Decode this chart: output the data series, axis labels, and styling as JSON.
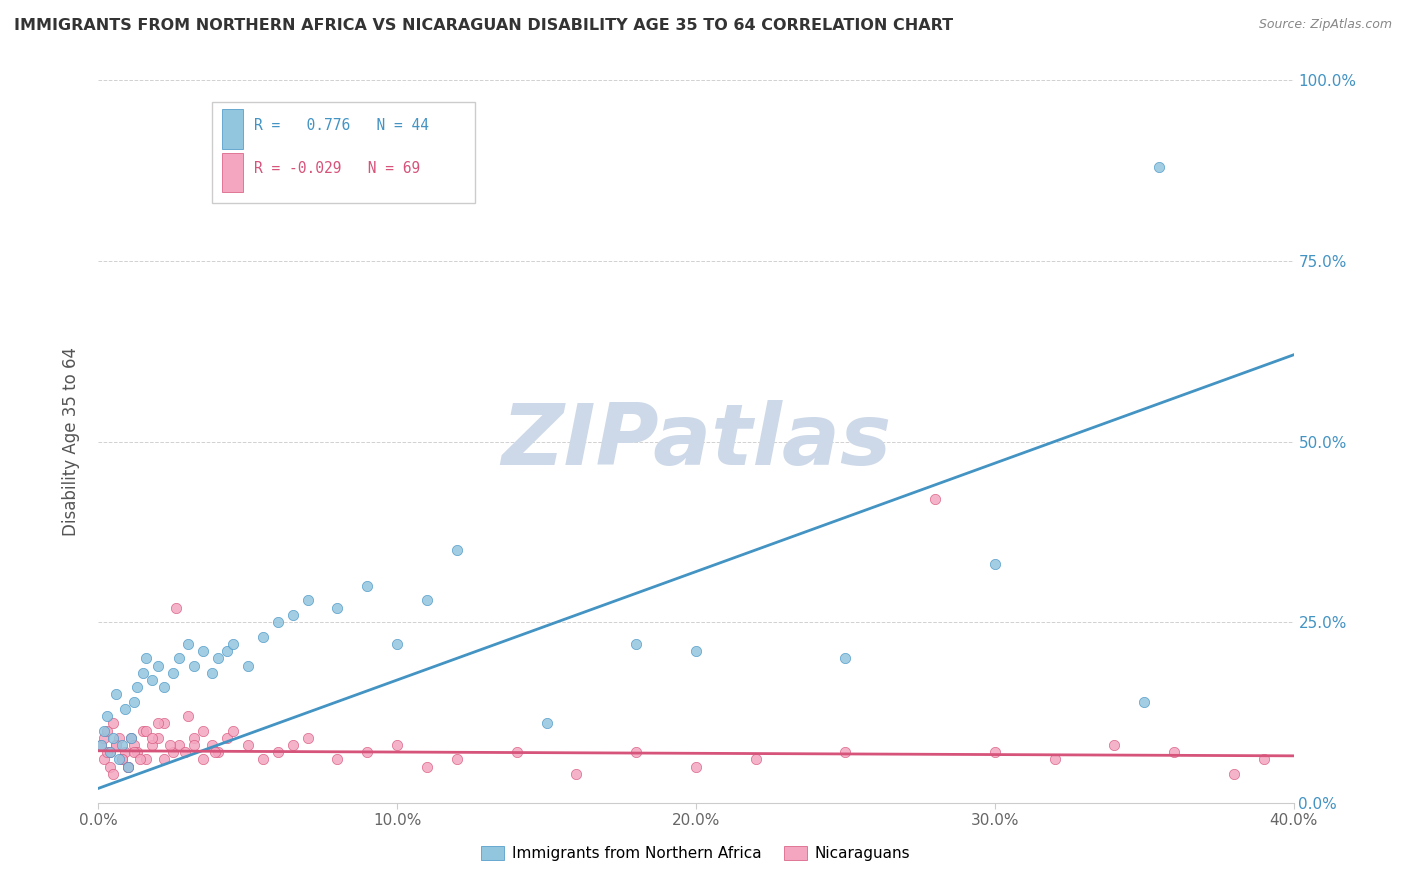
{
  "title": "IMMIGRANTS FROM NORTHERN AFRICA VS NICARAGUAN DISABILITY AGE 35 TO 64 CORRELATION CHART",
  "source": "Source: ZipAtlas.com",
  "ylabel": "Disability Age 35 to 64",
  "xlabel": "",
  "xlim": [
    0.0,
    0.4
  ],
  "ylim": [
    0.0,
    1.0
  ],
  "xticks": [
    0.0,
    0.1,
    0.2,
    0.3,
    0.4
  ],
  "yticks": [
    0.0,
    0.25,
    0.5,
    0.75,
    1.0
  ],
  "xtick_labels": [
    "0.0%",
    "10.0%",
    "20.0%",
    "30.0%",
    "40.0%"
  ],
  "ytick_labels": [
    "0.0%",
    "25.0%",
    "50.0%",
    "75.0%",
    "100.0%"
  ],
  "blue_R": 0.776,
  "blue_N": 44,
  "pink_R": -0.029,
  "pink_N": 69,
  "blue_color": "#92c5de",
  "pink_color": "#f4a6c0",
  "blue_line_color": "#4393c3",
  "pink_line_color": "#d6537a",
  "watermark": "ZIPatlas",
  "watermark_color": "#cdd9e8",
  "legend_label_blue": "Immigrants from Northern Africa",
  "legend_label_pink": "Nicaraguans",
  "blue_scatter_x": [
    0.001,
    0.002,
    0.003,
    0.004,
    0.005,
    0.006,
    0.007,
    0.008,
    0.009,
    0.01,
    0.011,
    0.012,
    0.013,
    0.015,
    0.016,
    0.018,
    0.02,
    0.022,
    0.025,
    0.027,
    0.03,
    0.032,
    0.035,
    0.038,
    0.04,
    0.043,
    0.045,
    0.05,
    0.055,
    0.06,
    0.065,
    0.07,
    0.08,
    0.09,
    0.1,
    0.11,
    0.12,
    0.15,
    0.18,
    0.2,
    0.25,
    0.3,
    0.35,
    0.355
  ],
  "blue_scatter_y": [
    0.08,
    0.1,
    0.12,
    0.07,
    0.09,
    0.15,
    0.06,
    0.08,
    0.13,
    0.05,
    0.09,
    0.14,
    0.16,
    0.18,
    0.2,
    0.17,
    0.19,
    0.16,
    0.18,
    0.2,
    0.22,
    0.19,
    0.21,
    0.18,
    0.2,
    0.21,
    0.22,
    0.19,
    0.23,
    0.25,
    0.26,
    0.28,
    0.27,
    0.3,
    0.22,
    0.28,
    0.35,
    0.11,
    0.22,
    0.21,
    0.2,
    0.33,
    0.14,
    0.88
  ],
  "pink_scatter_x": [
    0.001,
    0.002,
    0.003,
    0.004,
    0.005,
    0.006,
    0.007,
    0.008,
    0.009,
    0.01,
    0.011,
    0.012,
    0.013,
    0.015,
    0.016,
    0.018,
    0.02,
    0.022,
    0.025,
    0.027,
    0.03,
    0.032,
    0.035,
    0.038,
    0.04,
    0.043,
    0.045,
    0.05,
    0.055,
    0.06,
    0.065,
    0.07,
    0.08,
    0.09,
    0.1,
    0.11,
    0.12,
    0.14,
    0.16,
    0.18,
    0.2,
    0.22,
    0.25,
    0.28,
    0.3,
    0.32,
    0.34,
    0.36,
    0.38,
    0.39,
    0.002,
    0.003,
    0.004,
    0.005,
    0.006,
    0.008,
    0.01,
    0.012,
    0.014,
    0.016,
    0.018,
    0.02,
    0.022,
    0.024,
    0.026,
    0.029,
    0.032,
    0.035,
    0.039
  ],
  "pink_scatter_y": [
    0.08,
    0.09,
    0.1,
    0.07,
    0.11,
    0.08,
    0.09,
    0.06,
    0.07,
    0.05,
    0.09,
    0.08,
    0.07,
    0.1,
    0.06,
    0.08,
    0.09,
    0.11,
    0.07,
    0.08,
    0.12,
    0.09,
    0.1,
    0.08,
    0.07,
    0.09,
    0.1,
    0.08,
    0.06,
    0.07,
    0.08,
    0.09,
    0.06,
    0.07,
    0.08,
    0.05,
    0.06,
    0.07,
    0.04,
    0.07,
    0.05,
    0.06,
    0.07,
    0.42,
    0.07,
    0.06,
    0.08,
    0.07,
    0.04,
    0.06,
    0.06,
    0.07,
    0.05,
    0.04,
    0.08,
    0.06,
    0.05,
    0.07,
    0.06,
    0.1,
    0.09,
    0.11,
    0.06,
    0.08,
    0.27,
    0.07,
    0.08,
    0.06,
    0.07
  ],
  "blue_line_x0": 0.0,
  "blue_line_y0": 0.02,
  "blue_line_x1": 0.4,
  "blue_line_y1": 0.62,
  "pink_line_x0": 0.0,
  "pink_line_y0": 0.072,
  "pink_line_x1": 0.4,
  "pink_line_y1": 0.065
}
